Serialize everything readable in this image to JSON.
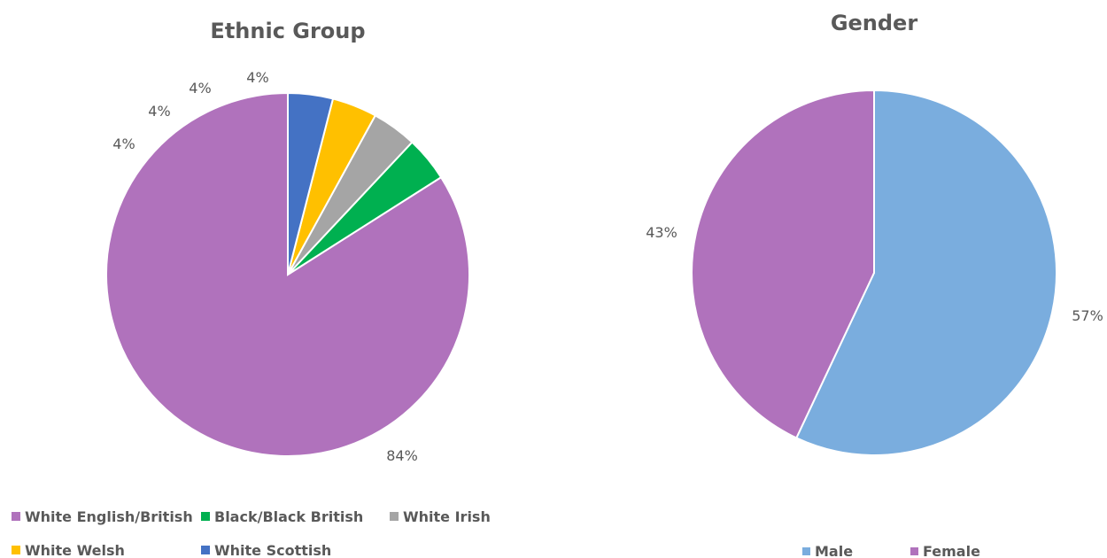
{
  "chart_data": [
    {
      "type": "pie",
      "title": "Ethnic Group",
      "categories": [
        "White English/British",
        "Black/Black British",
        "White Irish",
        "White Welsh",
        "White Scottish"
      ],
      "values": [
        84,
        4,
        4,
        4,
        4
      ],
      "labels": [
        "84%",
        "4%",
        "4%",
        "4%",
        "4%"
      ],
      "colors": [
        "#B072BC",
        "#00B050",
        "#A5A5A5",
        "#FFC000",
        "#4472C4"
      ],
      "start_angle_deg": 0,
      "direction": "counterclockwise",
      "legend_position": "bottom"
    },
    {
      "type": "pie",
      "title": "Gender",
      "categories": [
        "Male",
        "Female"
      ],
      "values": [
        57,
        43
      ],
      "labels": [
        "57%",
        "43%"
      ],
      "colors": [
        "#7AADDE",
        "#B072BC"
      ],
      "start_angle_deg": 0,
      "direction": "clockwise",
      "legend_position": "bottom"
    }
  ]
}
